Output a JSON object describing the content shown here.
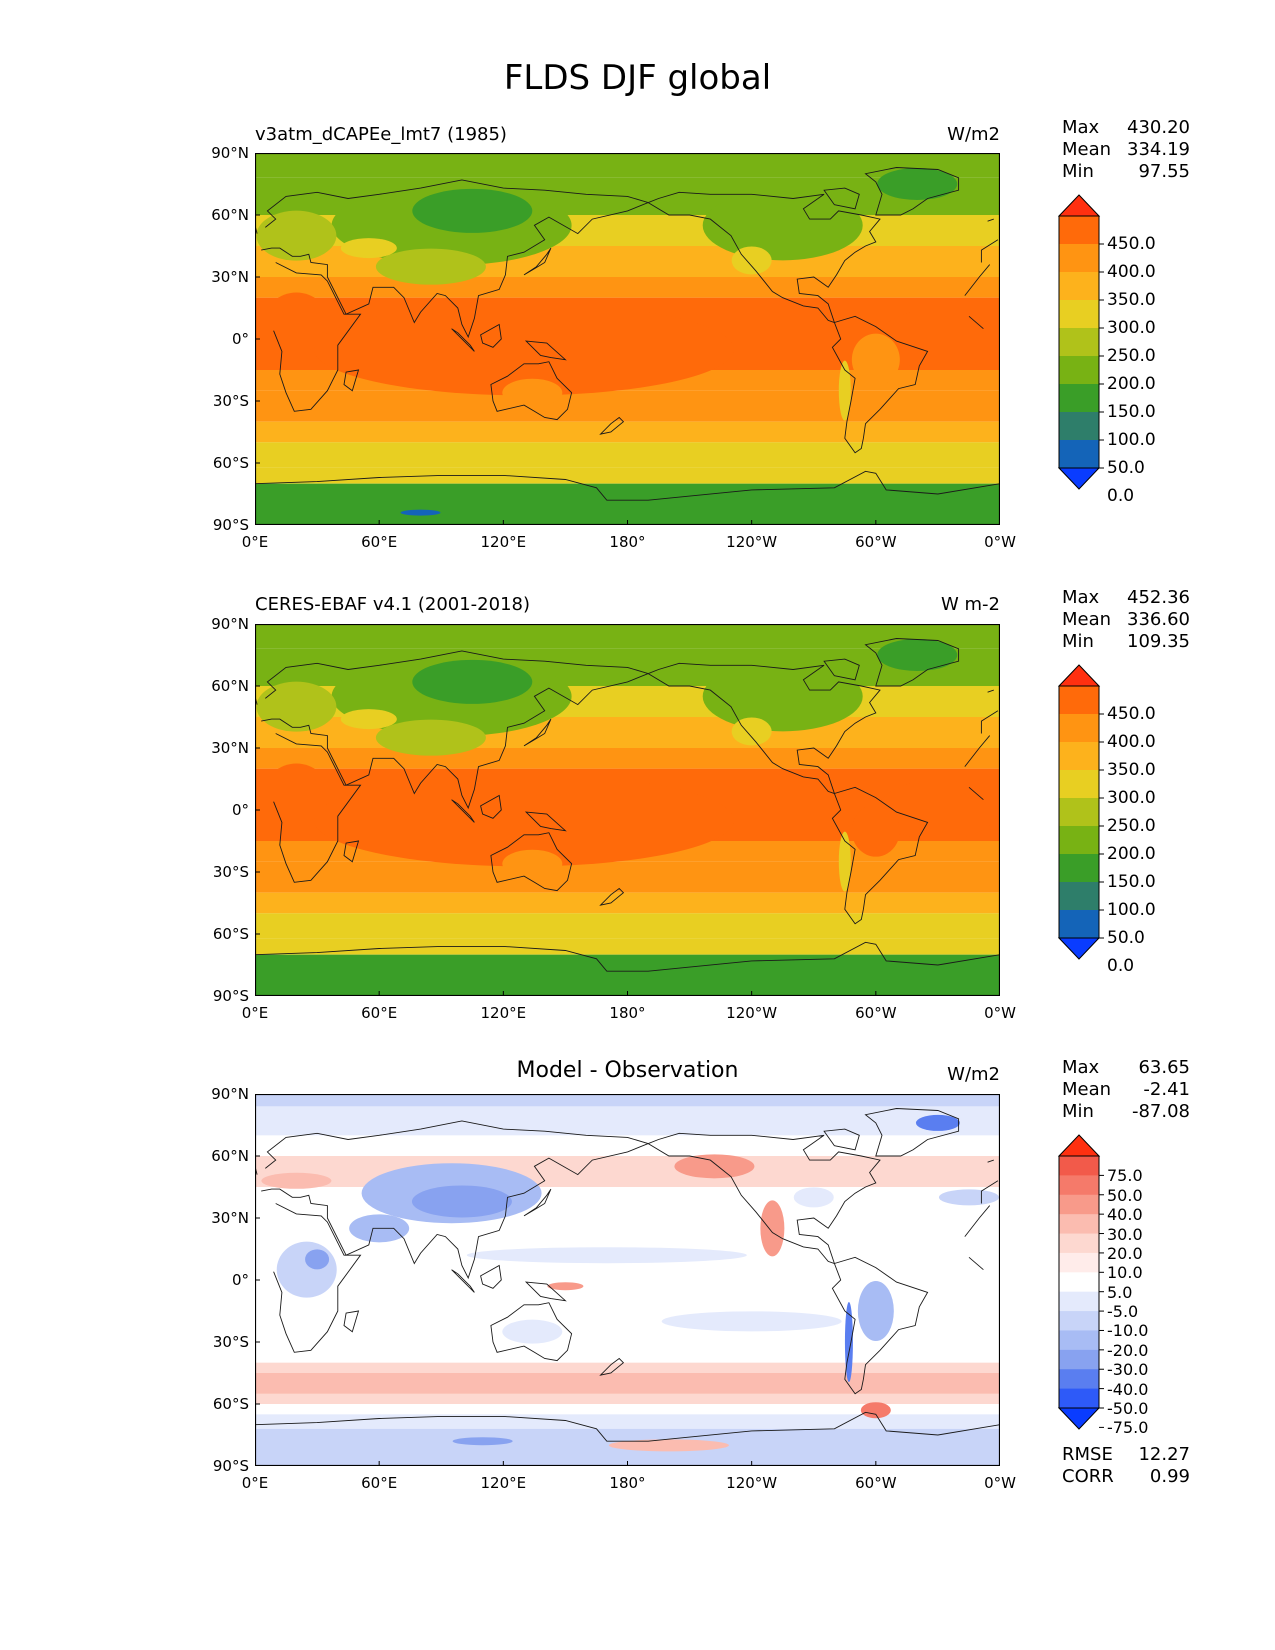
{
  "figure_title": "FLDS DJF global",
  "colorbar_abs": {
    "labels": [
      "450.0",
      "400.0",
      "350.0",
      "300.0",
      "250.0",
      "200.0",
      "150.0",
      "100.0",
      "50.0",
      "0.0"
    ],
    "colors": [
      "#ff3010",
      "#ff6a0a",
      "#ff9412",
      "#fdb21c",
      "#e8cf22",
      "#b0c21a",
      "#78b214",
      "#3a9e28",
      "#2e7e6a",
      "#1464b8",
      "#0a3cff"
    ]
  },
  "colorbar_diff": {
    "labels": [
      "75.0",
      "50.0",
      "40.0",
      "30.0",
      "20.0",
      "10.0",
      "5.0",
      "-5.0",
      "-10.0",
      "-20.0",
      "-30.0",
      "-40.0",
      "-50.0",
      "-75.0"
    ],
    "colors": [
      "#ff3010",
      "#f25a4a",
      "#f57a6a",
      "#f89a8a",
      "#fbbcb0",
      "#fdd8d0",
      "#ffecea",
      "#ffffff",
      "#e4eafc",
      "#c8d4f8",
      "#a8bcf4",
      "#88a2f0",
      "#5a7ef0",
      "#2e5af8",
      "#0a3cff"
    ]
  },
  "panels": [
    {
      "title": "v3atm_dCAPEe_lmt7 (1985)",
      "units": "W/m2",
      "stats": {
        "max_label": "Max",
        "max": "430.20",
        "mean_label": "Mean",
        "mean": "334.19",
        "min_label": "Min",
        "min": "97.55"
      },
      "kind": "abs"
    },
    {
      "title": "CERES-EBAF v4.1 (2001-2018)",
      "units": "W m-2",
      "stats": {
        "max_label": "Max",
        "max": "452.36",
        "mean_label": "Mean",
        "mean": "336.60",
        "min_label": "Min",
        "min": "109.35"
      },
      "kind": "abs"
    },
    {
      "title": "Model - Observation",
      "units": "W/m2",
      "stats": {
        "max_label": "Max",
        "max": "63.65",
        "mean_label": "Mean",
        "mean": "-2.41",
        "min_label": "Min",
        "min": "-87.08"
      },
      "extra_stats": {
        "rmse_label": "RMSE",
        "rmse": "12.27",
        "corr_label": "CORR",
        "corr": "0.99"
      },
      "kind": "diff"
    }
  ],
  "axes": {
    "lat_ticks": [
      "90°N",
      "60°N",
      "30°N",
      "0°",
      "30°S",
      "60°S",
      "90°S"
    ],
    "lon_ticks": [
      "0°E",
      "60°E",
      "120°E",
      "180°",
      "120°W",
      "60°W",
      "0°W"
    ]
  }
}
